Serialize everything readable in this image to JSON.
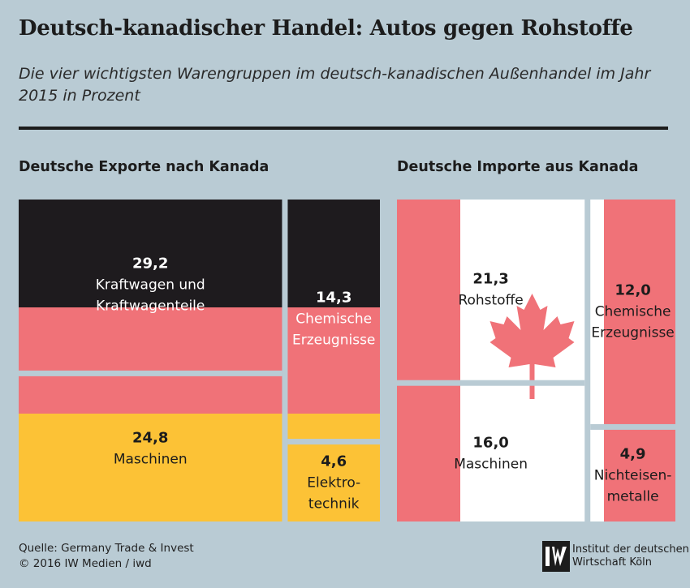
{
  "title": "Deutsch-kanadischer Handel: Autos gegen Rohstoffe",
  "subtitle": "Die vier wichtigsten Warengruppen im deutsch-kanadischen Außenhandel im Jahr 2015 in Prozent",
  "colors": {
    "black": "#1e1b1e",
    "red": "#f07278",
    "gold": "#fcc236",
    "white": "#ffffff",
    "background": "#b9cbd4"
  },
  "chart_data": [
    {
      "type": "treemap",
      "title": "Deutsche Exporte nach Kanada",
      "unit": "Prozent",
      "items": [
        {
          "name": "Kraftwagen und Kraftwagenteile",
          "value": 29.2,
          "value_label": "29,2",
          "label_lines": [
            "Kraftwagen und",
            "Kraftwagenteile"
          ]
        },
        {
          "name": "Maschinen",
          "value": 24.8,
          "value_label": "24,8",
          "label_lines": [
            "Maschinen"
          ]
        },
        {
          "name": "Chemische Erzeugnisse",
          "value": 14.3,
          "value_label": "14,3",
          "label_lines": [
            "Chemische",
            "Erzeugnisse"
          ]
        },
        {
          "name": "Elektrotechnik",
          "value": 4.6,
          "value_label": "4,6",
          "label_lines": [
            "Elektro-",
            "technik"
          ]
        }
      ]
    },
    {
      "type": "treemap",
      "title": "Deutsche Importe aus Kanada",
      "unit": "Prozent",
      "items": [
        {
          "name": "Rohstoffe",
          "value": 21.3,
          "value_label": "21,3",
          "label_lines": [
            "Rohstoffe"
          ]
        },
        {
          "name": "Maschinen",
          "value": 16.0,
          "value_label": "16,0",
          "label_lines": [
            "Maschinen"
          ]
        },
        {
          "name": "Chemische Erzeugnisse",
          "value": 12.0,
          "value_label": "12,0",
          "label_lines": [
            "Chemische",
            "Erzeugnisse"
          ]
        },
        {
          "name": "Nichteisenmetalle",
          "value": 4.9,
          "value_label": "4,9",
          "label_lines": [
            "Nichteisen-",
            "metalle"
          ]
        }
      ]
    }
  ],
  "footer": {
    "source": "Quelle: Germany Trade & Invest",
    "copyright": "© 2016 IW Medien / iwd"
  },
  "logo": {
    "mark": "iw-logo-icon",
    "line1": "Institut der deutschen",
    "line2": "Wirtschaft Köln"
  }
}
